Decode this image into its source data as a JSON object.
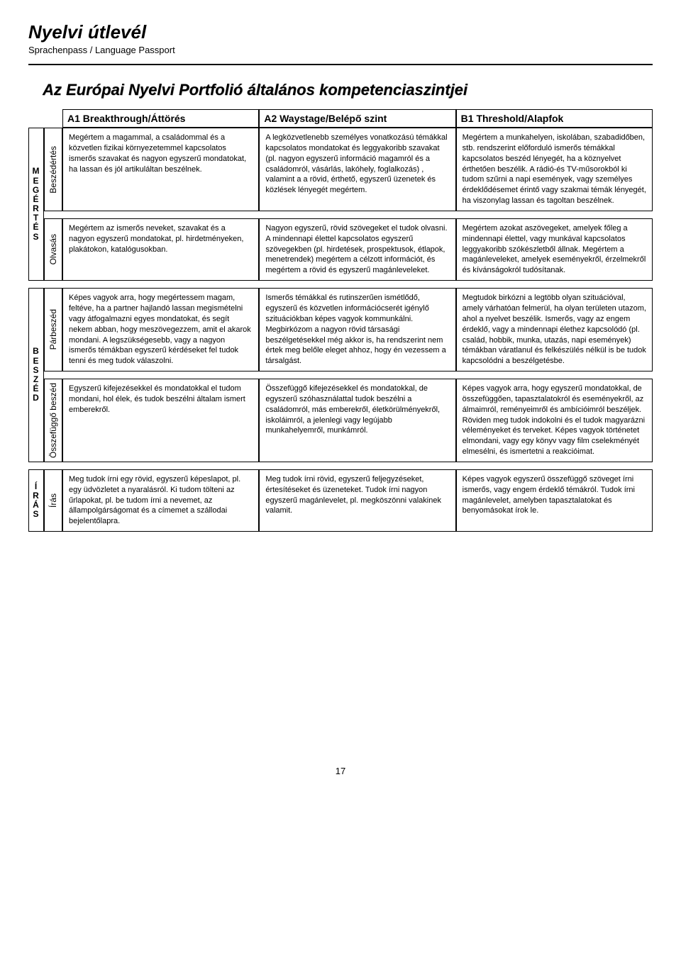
{
  "header": {
    "title": "Nyelvi útlevél",
    "subtitle": "Sprachenpass / Language Passport"
  },
  "section_title": "Az Európai Nyelvi Portfolió általános kompetenciaszintjei",
  "columns": {
    "a1": "A1 Breakthrough/Áttörés",
    "a2": "A2 Waystage/Belépő szint",
    "b1": "B1 Threshold/Alapfok"
  },
  "categories": {
    "megertes": "MEGÉRTÉS",
    "beszed": "BESZÉD",
    "iras": "ÍRÁS"
  },
  "skills": {
    "beszedertes": "Beszédértés",
    "olvasas": "Olvasás",
    "parbeszed": "Párbeszéd",
    "osszefuggo": "Összefüggő beszéd",
    "iras": "Írás"
  },
  "cells": {
    "r1a1": "Megértem a magammal, a családommal és a közvetlen fizikai környezetemmel kapcsolatos ismerős szavakat és nagyon egyszerű mondatokat, ha lassan és jól artikuláltan beszélnek.",
    "r1a2": "A legközvetlenebb személyes vonatkozású témákkal kapcsolatos mondatokat és leggyakoribb szavakat (pl. nagyon egyszerű információ magamról és a családomról, vásárlás, lakóhely, foglalkozás) , valamint a a rövid, érthető, egyszerű üzenetek és közlések lényegét megértem.",
    "r1b1": "Megértem a munkahelyen, iskolában, szabadidőben, stb. rendszerint előforduló ismerős témákkal kapcsolatos beszéd lényegét, ha a köznyelvet érthetően beszélik. A rádió-és TV-műsorokból ki tudom szűrni a napi események, vagy személyes érdeklődésemet érintő vagy szakmai témák lényegét, ha viszonylag lassan és tagoltan beszélnek.",
    "r2a1": "Megértem az ismerős neveket, szavakat és a nagyon egyszerű mondatokat, pl. hirdetményeken, plakátokon, katalógusokban.",
    "r2a2": "Nagyon egyszerű, rövid szövegeket el tudok olvasni. A mindennapi élettel kapcsolatos egyszerű szövegekben (pl. hirdetések, prospektusok, étlapok, menetrendek) megértem a célzott információt, és megértem a rövid és egyszerű magánleveleket.",
    "r2b1": "Megértem azokat aszövegeket, amelyek főleg a mindennapi élettel, vagy munkával kapcsolatos leggyakoribb szókészletből állnak. Megértem a magánleveleket, amelyek eseményekről, érzelmekről és kívánságokról tudósítanak.",
    "r3a1": "Képes vagyok arra, hogy megértessem magam, feltéve, ha a partner hajlandó lassan megismételni vagy átfogalmazni egyes mondatokat, és segít nekem abban, hogy meszövegezzem, amit el akarok mondani. A legszükségesebb, vagy a nagyon ismerős témákban egyszerű kérdéseket fel tudok tenni és meg tudok válaszolni.",
    "r3a2": "Ismerős témákkal és rutinszerűen ismétlődő, egyszerű és közvetlen információcserét igénylő szituációkban képes vagyok kommunkálni. Megbirkózom a nagyon rövid társasági beszélgetésekkel még akkor is, ha rendszerint nem értek meg belőle eleget ahhoz, hogy én vezessem a társalgást.",
    "r3b1": "Megtudok birkózni a legtöbb olyan szituációval, amely várhatóan felmerül, ha olyan területen utazom, ahol a nyelvet beszélik. Ismerős, vagy az engem érdeklő, vagy a mindennapi élethez kapcsolódó (pl. család, hobbik, munka, utazás, napi események) témákban váratlanul és felkészülés nélkül is be tudok kapcsolódni a beszélgetésbe.",
    "r4a1": "Egyszerű kifejezésekkel és mondatokkal el tudom mondani, hol élek, és tudok beszélni általam ismert emberekről.",
    "r4a2": "Összefüggő kifejezésekkel és mondatokkal, de egyszerű szóhasználattal tudok beszélni a családomról, más emberekről, életkörülményekről, iskoláimról, a jelenlegi vagy legújabb munkahelyemről, munkámról.",
    "r4b1": "Képes vagyok arra, hogy egyszerű mondatokkal, de összefüggően, tapasztalatokról és eseményekről, az álmaimról, reményeimről és ambícióimról beszéljek. Röviden meg tudok indokolni és el tudok magyarázni véleményeket és terveket. Képes vagyok történetet elmondani, vagy egy könyv vagy film cselekményét elmesélni, és ismertetni a reakcióimat.",
    "r5a1": "Meg tudok írni egy rövid, egyszerű képeslapot, pl. egy üdvözletet a nyaralásról. Ki tudom tölteni az űrlapokat, pl. be tudom írni a nevemet, az állampolgárságomat és a címemet a szállodai bejelentőlapra.",
    "r5a2": "Meg tudok írni rövid, egyszerű feljegyzéseket, értesítéseket és üzeneteket. Tudok írni nagyon egyszerű magánlevelet, pl. megköszönni valakinek valamit.",
    "r5b1": "Képes vagyok egyszerű összefüggő szöveget írni ismerős, vagy engem érdeklő témákról. Tudok írni magánlevelet, amelyben tapasztalatokat és benyomásokat írok le."
  },
  "page_number": "17"
}
